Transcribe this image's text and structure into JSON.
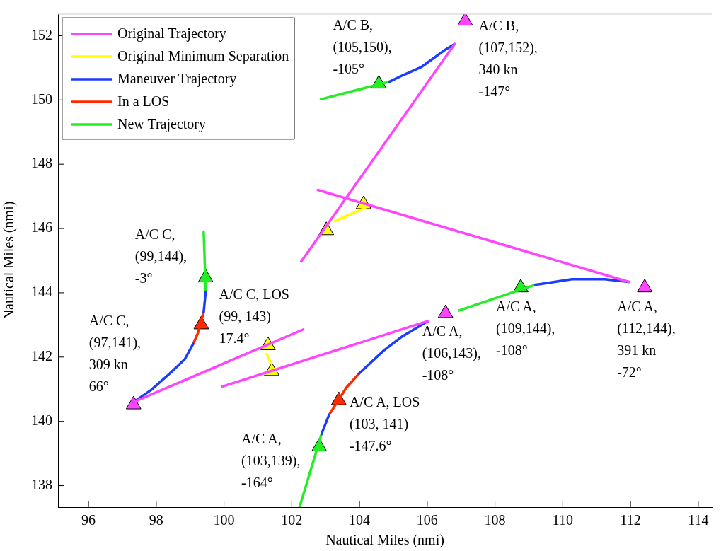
{
  "chart_data": {
    "type": "line",
    "xlabel": "Nautical Miles (nmi)",
    "ylabel": "Nautical Miles (nmi)",
    "xlim": [
      95.1,
      114.4
    ],
    "xticks": [
      96,
      98,
      100,
      102,
      104,
      106,
      108,
      110,
      112,
      114
    ],
    "ylim": [
      137.33,
      152.67
    ],
    "yticks": [
      138,
      140,
      142,
      144,
      146,
      148,
      150,
      152
    ],
    "grid": false,
    "legend": "top left",
    "marker": "none",
    "line_style": "solid",
    "series": [
      {
        "name": "Original Trajectory",
        "color": "#ff44ff",
        "x": [
          106.81,
          102.28
        ],
        "values": [
          151.74,
          144.97
        ]
      },
      {
        "color": "#ff44ff",
        "x": [
          111.95,
          102.77
        ],
        "values": [
          144.34,
          147.2
        ]
      },
      {
        "color": "#ff44ff",
        "x": [
          97.33,
          102.34
        ],
        "values": [
          140.6,
          142.86
        ]
      },
      {
        "color": "#ff44ff",
        "x": [
          106.02,
          99.94
        ],
        "values": [
          143.12,
          141.08
        ]
      },
      {
        "name": "Original Minimum Separation",
        "color": "#ffff00",
        "x": [
          103.27,
          104.16
        ],
        "values": [
          146.23,
          146.64
        ]
      },
      {
        "color": "#ffff00",
        "x": [
          101.26,
          101.39
        ],
        "values": [
          142.1,
          141.8
        ]
      },
      {
        "name": "Maneuver Trajectory",
        "color": "#1a3cff",
        "x": [
          106.81,
          106.5,
          105.82,
          105.26,
          104.89
        ],
        "values": [
          151.74,
          151.54,
          151.02,
          150.76,
          150.57
        ]
      },
      {
        "color": "#1a3cff",
        "x": [
          97.33,
          97.84,
          98.36,
          98.84,
          99.09
        ],
        "values": [
          140.6,
          140.97,
          141.45,
          141.93,
          142.41
        ]
      },
      {
        "color": "#1a3cff",
        "x": [
          99.4,
          99.46
        ],
        "values": [
          143.4,
          144.03
        ]
      },
      {
        "color": "#1a3cff",
        "x": [
          111.95,
          111.24,
          110.27,
          109.32,
          109.19
        ],
        "values": [
          144.34,
          144.42,
          144.42,
          144.27,
          144.25
        ]
      },
      {
        "color": "#1a3cff",
        "x": [
          106.02,
          105.26,
          104.7,
          103.99
        ],
        "values": [
          143.12,
          142.64,
          142.19,
          141.49
        ]
      },
      {
        "color": "#1a3cff",
        "x": [
          103.1,
          102.88
        ],
        "values": [
          140.2,
          139.61
        ]
      },
      {
        "name": "In a LOS",
        "color": "#ff2a00",
        "x": [
          99.09,
          99.23,
          99.4
        ],
        "values": [
          142.41,
          142.75,
          143.4
        ]
      },
      {
        "color": "#ff2a00",
        "x": [
          103.99,
          103.62,
          103.1
        ],
        "values": [
          141.49,
          141.06,
          140.2
        ]
      },
      {
        "name": "New Trajectory",
        "color": "#22ee22",
        "x": [
          104.89,
          102.86
        ],
        "values": [
          150.57,
          150.02
        ]
      },
      {
        "color": "#22ee22",
        "x": [
          99.46,
          99.4
        ],
        "values": [
          144.03,
          145.9
        ]
      },
      {
        "color": "#22ee22",
        "x": [
          109.19,
          106.94
        ],
        "values": [
          144.25,
          143.45
        ]
      },
      {
        "color": "#22ee22",
        "x": [
          102.88,
          102.23
        ],
        "values": [
          139.61,
          137.33
        ]
      },
      {
        "type": "scatter",
        "marker": "triangle",
        "x": [
          107.12,
          104.57,
          103.02,
          104.12,
          101.3,
          101.41,
          97.33,
          99.33,
          99.46,
          112.42,
          108.76,
          106.54,
          103.39,
          102.81
        ],
        "values": [
          152.46,
          150.5,
          145.94,
          146.75,
          142.36,
          141.56,
          140.52,
          143.01,
          144.47,
          144.16,
          144.16,
          143.36,
          140.65,
          139.21
        ],
        "colors": [
          "#ff44ff",
          "#22ee22",
          "#ffff00",
          "#ffff00",
          "#ffff00",
          "#ffff00",
          "#ff44ff",
          "#ff2a00",
          "#22ee22",
          "#ff44ff",
          "#22ee22",
          "#ff44ff",
          "#ff2a00",
          "#22ee22"
        ]
      }
    ],
    "annotations": [
      {
        "text": "A/C B,\n(105,150),\n-105°",
        "x": 104.57,
        "y": 150.5
      },
      {
        "text": "A/C B,\n(107,152),\n340 kn\n-147°",
        "x": 107.12,
        "y": 152.46
      },
      {
        "text": "A/C C,\n(99,144),\n-3°",
        "x": 99.46,
        "y": 144.47
      },
      {
        "text": "A/C C, LOS\n(99, 143)\n17.4°",
        "x": 99.33,
        "y": 143.01
      },
      {
        "text": "A/C C,\n(97,141),\n309 kn\n66°",
        "x": 97.33,
        "y": 140.52
      },
      {
        "text": "A/C A,\n(106,143),\n-108°",
        "x": 106.54,
        "y": 143.36
      },
      {
        "text": "A/C A,\n(109,144),\n-108°",
        "x": 108.76,
        "y": 144.16
      },
      {
        "text": "A/C A,\n(112,144),\n391 kn\n-72°",
        "x": 112.42,
        "y": 144.16
      },
      {
        "text": "A/C A, LOS\n(103, 141)\n-147.6°",
        "x": 103.39,
        "y": 140.65
      },
      {
        "text": "A/C A,\n(103,139),\n-164°",
        "x": 102.81,
        "y": 139.21
      }
    ]
  }
}
